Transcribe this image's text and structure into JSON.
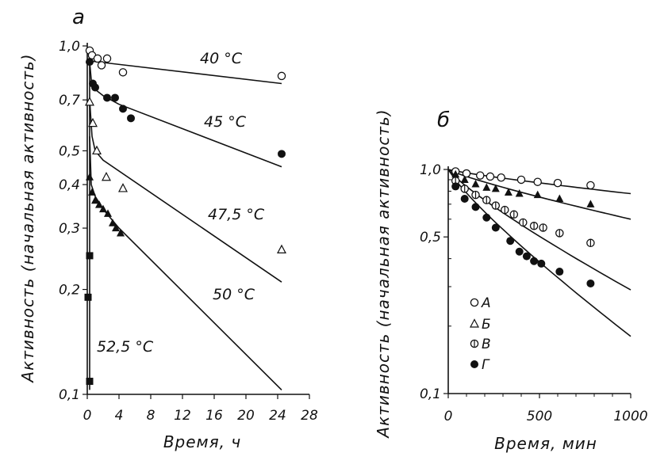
{
  "chart_data": [
    {
      "type": "scatter",
      "panel_label": "а",
      "xlabel": "Время, ч",
      "ylabel": "Активность (начальная активность)",
      "xscale": "linear",
      "yscale": "log",
      "xlim": [
        0,
        28
      ],
      "ylim": [
        0.1,
        1.0
      ],
      "xticks": [
        "0",
        "4",
        "8",
        "12",
        "16",
        "20",
        "24",
        "28"
      ],
      "yticks": [
        {
          "v": 1.0,
          "label": "1,0"
        },
        {
          "v": 0.7,
          "label": "0,7"
        },
        {
          "v": 0.5,
          "label": "0,5"
        },
        {
          "v": 0.4,
          "label": "0,4"
        },
        {
          "v": 0.3,
          "label": "0,3"
        },
        {
          "v": 0.2,
          "label": "0,2"
        },
        {
          "v": 0.1,
          "label": "0,1"
        }
      ],
      "grid": false,
      "series": [
        {
          "name": "40 °С",
          "marker": "open-circle",
          "points": [
            [
              0.3,
              0.97
            ],
            [
              0.6,
              0.94
            ],
            [
              1.3,
              0.92
            ],
            [
              1.8,
              0.88
            ],
            [
              2.5,
              0.92
            ],
            [
              4.5,
              0.84
            ],
            [
              24.5,
              0.82
            ]
          ],
          "line": [
            [
              0.4,
              0.905
            ],
            [
              24.5,
              0.78
            ]
          ]
        },
        {
          "name": "45 °С",
          "marker": "filled-circle",
          "points": [
            [
              0.3,
              0.9
            ],
            [
              0.7,
              0.78
            ],
            [
              1.0,
              0.76
            ],
            [
              2.5,
              0.71
            ],
            [
              3.5,
              0.71
            ],
            [
              4.5,
              0.66
            ],
            [
              5.5,
              0.62
            ],
            [
              24.5,
              0.49
            ]
          ],
          "line": [
            [
              0.3,
              0.9
            ],
            [
              0.5,
              0.8
            ],
            [
              1.0,
              0.75
            ],
            [
              2.0,
              0.72
            ],
            [
              4.0,
              0.68
            ],
            [
              24.5,
              0.45
            ]
          ]
        },
        {
          "name": "47,5 °С",
          "marker": "open-triangle",
          "points": [
            [
              0.3,
              0.69
            ],
            [
              0.7,
              0.6
            ],
            [
              1.2,
              0.5
            ],
            [
              2.4,
              0.42
            ],
            [
              4.5,
              0.39
            ],
            [
              24.5,
              0.26
            ]
          ],
          "line": [
            [
              0.3,
              0.7
            ],
            [
              0.6,
              0.55
            ],
            [
              1.0,
              0.5
            ],
            [
              2.0,
              0.47
            ],
            [
              24.5,
              0.21
            ]
          ]
        },
        {
          "name": "50 °С",
          "marker": "filled-triangle",
          "points": [
            [
              0.3,
              0.42
            ],
            [
              0.6,
              0.38
            ],
            [
              1.0,
              0.36
            ],
            [
              1.5,
              0.35
            ],
            [
              2.0,
              0.34
            ],
            [
              2.6,
              0.33
            ],
            [
              3.2,
              0.31
            ],
            [
              3.6,
              0.3
            ],
            [
              4.2,
              0.29
            ]
          ],
          "line": [
            [
              0.3,
              0.55
            ],
            [
              0.5,
              0.4
            ],
            [
              1.0,
              0.37
            ],
            [
              2.0,
              0.34
            ],
            [
              4.0,
              0.3
            ],
            [
              24.5,
              0.103
            ]
          ]
        },
        {
          "name": "52,5 °С",
          "marker": "filled-square",
          "points": [
            [
              0.3,
              0.25
            ],
            [
              0.1,
              0.19
            ],
            [
              0.3,
              0.109
            ]
          ],
          "line": [
            [
              0.3,
              0.103
            ],
            [
              0.3,
              0.9
            ]
          ]
        }
      ],
      "annotations": [
        "40 °С",
        "45 °С",
        "47,5 °С",
        "50 °С",
        "52,5 °С"
      ]
    },
    {
      "type": "scatter",
      "panel_label": "б",
      "xlabel": "Время, мин",
      "ylabel": "Активность (начальная активность)",
      "xscale": "linear",
      "yscale": "log",
      "xlim": [
        0,
        1000
      ],
      "ylim": [
        0.1,
        1.0
      ],
      "xticks": [
        "0",
        "500",
        "1000"
      ],
      "yticks": [
        {
          "v": 1.0,
          "label": "1,0"
        },
        {
          "v": 0.5,
          "label": "0,5"
        },
        {
          "v": 0.1,
          "label": "0,1"
        }
      ],
      "grid": false,
      "legend_position": "bottom-left",
      "series": [
        {
          "name": "А",
          "marker": "open-circle",
          "points": [
            [
              40,
              0.98
            ],
            [
              100,
              0.96
            ],
            [
              175,
              0.94
            ],
            [
              230,
              0.93
            ],
            [
              290,
              0.92
            ],
            [
              400,
              0.9
            ],
            [
              490,
              0.88
            ],
            [
              600,
              0.87
            ],
            [
              780,
              0.85
            ]
          ],
          "line": [
            [
              0,
              1.0
            ],
            [
              1000,
              0.78
            ]
          ]
        },
        {
          "name": "Б",
          "marker": "filled-triangle",
          "points": [
            [
              40,
              0.95
            ],
            [
              90,
              0.9
            ],
            [
              150,
              0.86
            ],
            [
              210,
              0.83
            ],
            [
              260,
              0.82
            ],
            [
              330,
              0.79
            ],
            [
              390,
              0.78
            ],
            [
              490,
              0.77
            ],
            [
              610,
              0.74
            ],
            [
              780,
              0.7
            ]
          ],
          "line": [
            [
              0,
              1.0
            ],
            [
              1000,
              0.6
            ]
          ]
        },
        {
          "name": "В",
          "marker": "crossed-circle",
          "points": [
            [
              40,
              0.89
            ],
            [
              90,
              0.82
            ],
            [
              150,
              0.77
            ],
            [
              210,
              0.73
            ],
            [
              260,
              0.69
            ],
            [
              310,
              0.66
            ],
            [
              360,
              0.63
            ],
            [
              410,
              0.58
            ],
            [
              470,
              0.56
            ],
            [
              520,
              0.55
            ],
            [
              610,
              0.52
            ],
            [
              780,
              0.47
            ]
          ],
          "line": [
            [
              0,
              1.0
            ],
            [
              1000,
              0.29
            ]
          ]
        },
        {
          "name": "Г",
          "marker": "filled-circle",
          "points": [
            [
              40,
              0.84
            ],
            [
              90,
              0.74
            ],
            [
              150,
              0.68
            ],
            [
              210,
              0.61
            ],
            [
              260,
              0.55
            ],
            [
              340,
              0.48
            ],
            [
              390,
              0.43
            ],
            [
              430,
              0.41
            ],
            [
              470,
              0.39
            ],
            [
              510,
              0.38
            ],
            [
              610,
              0.35
            ],
            [
              780,
              0.31
            ]
          ],
          "line": [
            [
              0,
              1.0
            ],
            [
              1000,
              0.18
            ]
          ]
        }
      ]
    }
  ]
}
